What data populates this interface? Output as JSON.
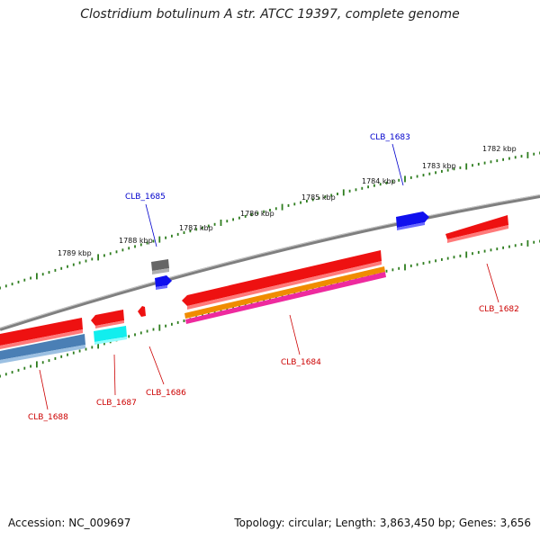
{
  "title": "Clostridium botulinum A str. ATCC 19397, complete genome",
  "accession": "Accession: NC_009697",
  "summary": "Topology: circular; Length: 3,863,450 bp; Genes: 3,656",
  "colors": {
    "backbone": "#7f7f7f",
    "ticks": "#2e7d1f",
    "forward_label": "#0000cc",
    "reverse_label": "#cc0000",
    "cds_red": "#ee1111",
    "cds_blue": "#1010ee",
    "cds_grey": "#666666",
    "cds_cyan": "#11eeee",
    "cds_steel": "#4a7fb5",
    "cds_orange": "#f08c00",
    "cds_magenta": "#ee2a9e"
  },
  "kbp_labels": [
    "1782 kbp",
    "1783 kbp",
    "1784 kbp",
    "1785 kbp",
    "1786 kbp",
    "1787 kbp",
    "1788 kbp",
    "1789 kbp"
  ],
  "gene_labels": {
    "clb_1682": "CLB_1682",
    "clb_1683": "CLB_1683",
    "clb_1684": "CLB_1684",
    "clb_1685": "CLB_1685",
    "clb_1686": "CLB_1686",
    "clb_1687": "CLB_1687",
    "clb_1688": "CLB_1688"
  }
}
